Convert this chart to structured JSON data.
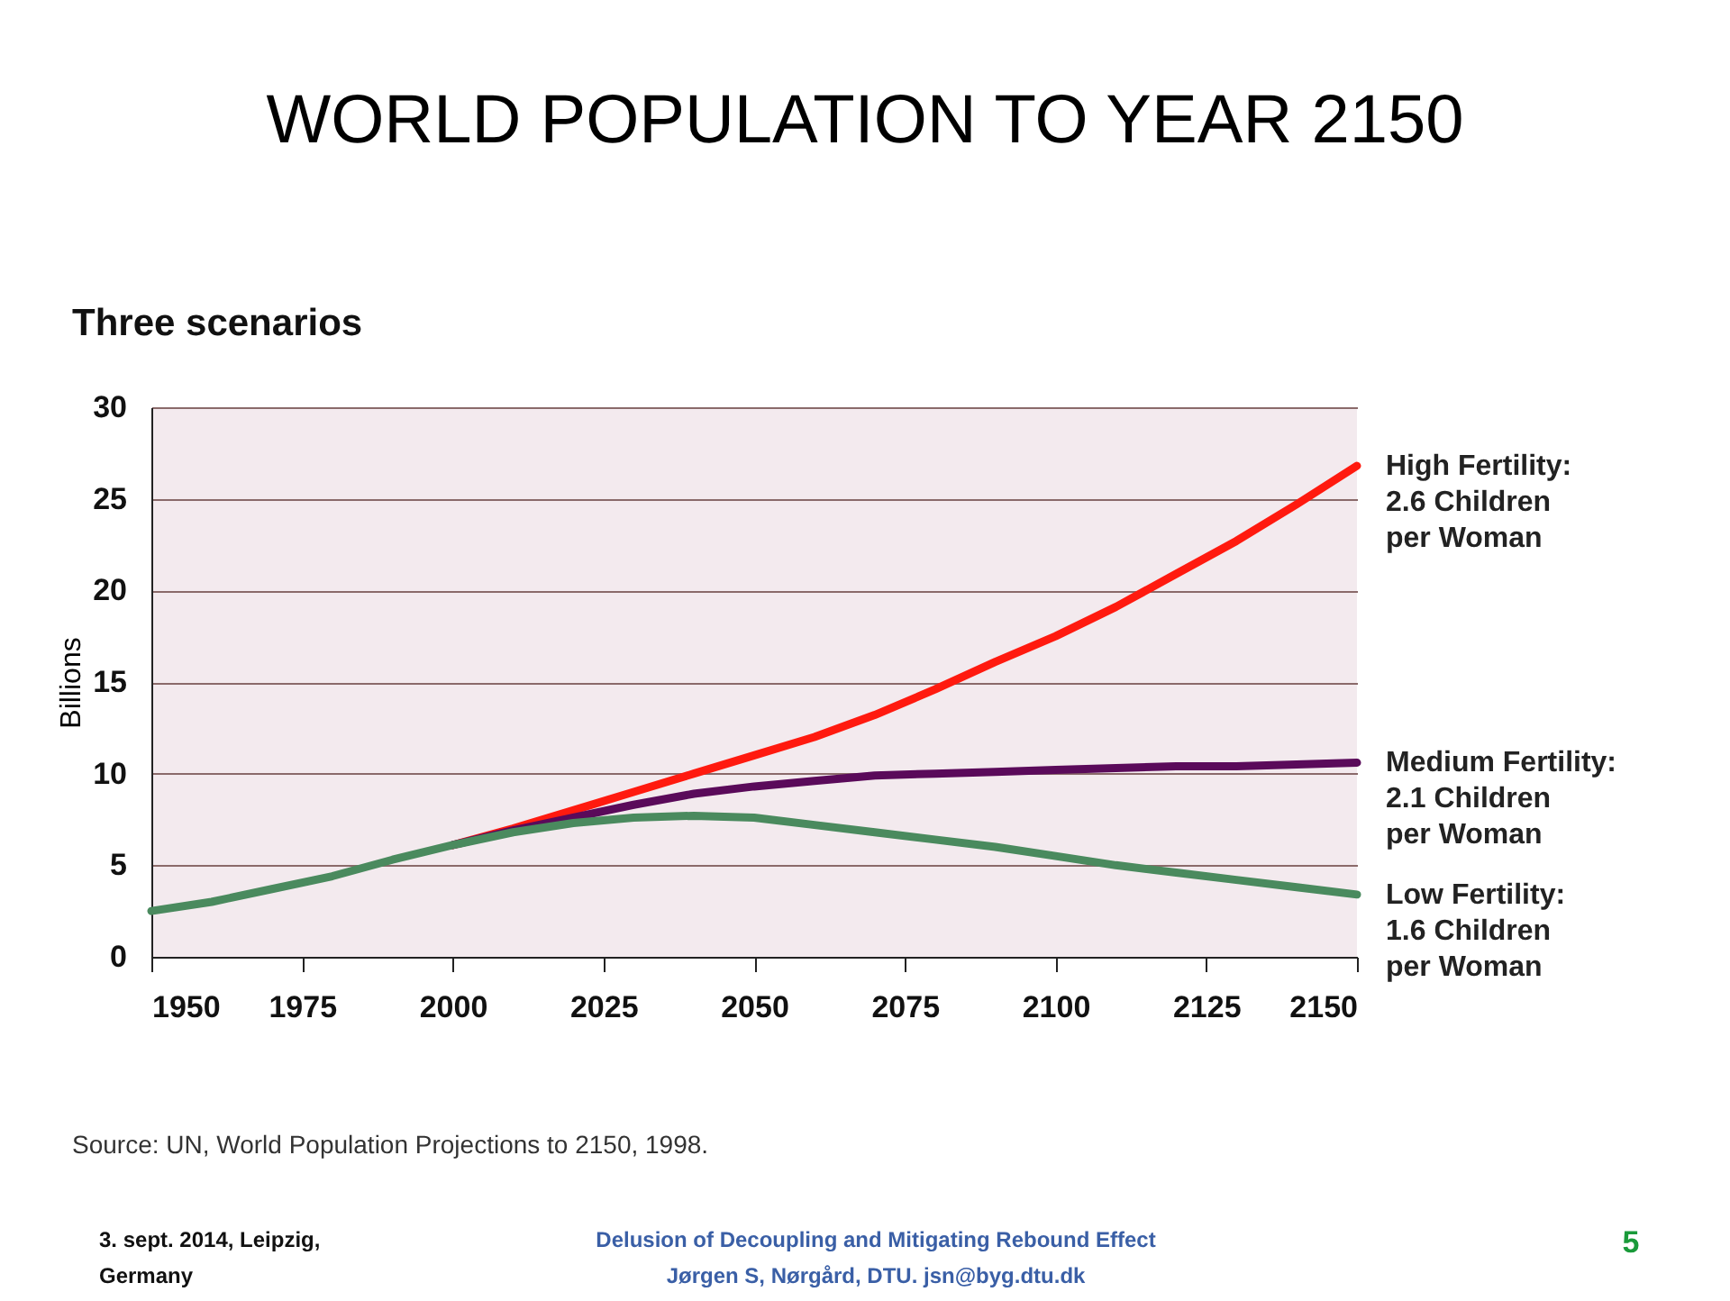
{
  "chart_data": {
    "type": "line",
    "title": "WORLD POPULATION TO YEAR  2150",
    "subtitle": "Three scenarios",
    "ylabel": "Billions",
    "xlim": [
      1950,
      2150
    ],
    "xticks": [
      1950,
      1975,
      2000,
      2025,
      2050,
      2075,
      2100,
      2125,
      2150
    ],
    "ylim": [
      0,
      30
    ],
    "yticks": [
      0,
      5,
      10,
      15,
      20,
      25,
      30
    ],
    "grid": "y",
    "legend": false,
    "marker": "none",
    "line_style": "solid",
    "series": [
      {
        "name": "High Fertility:\n2.6 Children\nper Woman",
        "color": "#ff1a0f",
        "x": [
          2000,
          2010,
          2020,
          2030,
          2040,
          2050,
          2060,
          2070,
          2080,
          2090,
          2100,
          2110,
          2120,
          2130,
          2140,
          2150
        ],
        "values": [
          6.1,
          7.0,
          8.0,
          9.0,
          10.0,
          11.0,
          12.0,
          13.2,
          14.6,
          16.1,
          17.5,
          19.1,
          20.9,
          22.7,
          24.7,
          26.8
        ]
      },
      {
        "name": "Medium Fertility:\n2.1 Children\nper Woman",
        "color": "#5a0a5a",
        "x": [
          2000,
          2010,
          2020,
          2030,
          2040,
          2050,
          2060,
          2070,
          2080,
          2090,
          2100,
          2110,
          2120,
          2130,
          2140,
          2150
        ],
        "values": [
          6.1,
          6.9,
          7.6,
          8.3,
          8.9,
          9.3,
          9.6,
          9.9,
          10.0,
          10.1,
          10.2,
          10.3,
          10.4,
          10.4,
          10.5,
          10.6
        ]
      },
      {
        "name": "Low Fertility:\n1.6 Children\nper Woman",
        "color": "#4a8a5e",
        "x": [
          1950,
          1960,
          1970,
          1980,
          1990,
          2000,
          2010,
          2020,
          2030,
          2040,
          2050,
          2060,
          2070,
          2080,
          2090,
          2100,
          2110,
          2120,
          2130,
          2140,
          2150
        ],
        "values": [
          2.5,
          3.0,
          3.7,
          4.4,
          5.3,
          6.1,
          6.8,
          7.3,
          7.6,
          7.7,
          7.6,
          7.2,
          6.8,
          6.4,
          6.0,
          5.5,
          5.0,
          4.6,
          4.2,
          3.8,
          3.4
        ]
      }
    ],
    "annotations": [
      "Source: UN, World Population Projections to 2150, 1998.",
      "3. sept. 2014,  Leipzig,\nGermany",
      "Delusion of Decoupling and Mitigating Rebound  Effect\nJørgen  S, Nørgård, DTU.    jsn@byg.dtu.dk",
      "5"
    ]
  }
}
